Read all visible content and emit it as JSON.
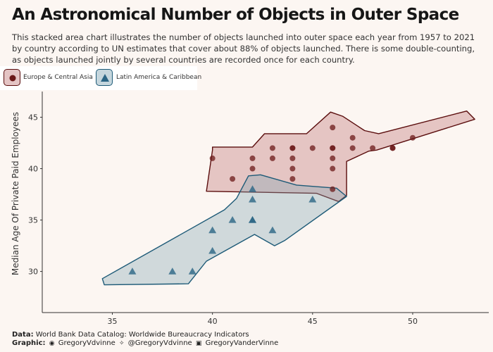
{
  "title": "An Astronomical Number of Objects in Outer Space",
  "subtitle": "This stacked area chart illustrates the number of objects launched into outer space each year from 1957 to 2021 by country according to UN estimates that cover about 88% of objects launched. There is some double-counting, as objects launched jointly by several countries are recorded once for each country.",
  "footer": {
    "data_label": "Data:",
    "data_text": "World Bank Data Catalog: Worldwide Bureaucracy Indicators",
    "graphic_label": "Graphic:",
    "github_handle": "GregoryVdvinne",
    "twitter_handle": "@GregoryVdvinne",
    "linkedin_handle": "GregoryVanderVinne"
  },
  "colors": {
    "europe_fill": "#c98a8a",
    "europe_stroke": "#5a0d0d",
    "europe_point": "#6b1818",
    "latam_fill": "#7fa3b3",
    "latam_stroke": "#1d5a77",
    "latam_point": "#2b6585",
    "background": "#fcf6f2"
  },
  "chart_data": {
    "type": "scatter",
    "ylabel": "Median Age Of Private Paid Employees",
    "xlabel": "",
    "xlim": [
      31.5,
      53.8
    ],
    "ylim": [
      26,
      47.5
    ],
    "xticks": [
      35,
      40,
      45,
      50
    ],
    "yticks": [
      30,
      35,
      40,
      45
    ],
    "grid": false,
    "legend_position": "top-left",
    "series": [
      {
        "name": "Europe & Central Asia",
        "marker": "circle",
        "points": [
          [
            40,
            41
          ],
          [
            41,
            39
          ],
          [
            42,
            40
          ],
          [
            42,
            41
          ],
          [
            43,
            42
          ],
          [
            43,
            41
          ],
          [
            44,
            42
          ],
          [
            44,
            42
          ],
          [
            44,
            41
          ],
          [
            44,
            40
          ],
          [
            44,
            39
          ],
          [
            45,
            42
          ],
          [
            46,
            44
          ],
          [
            46,
            42
          ],
          [
            46,
            42
          ],
          [
            46,
            41
          ],
          [
            46,
            40
          ],
          [
            46,
            38
          ],
          [
            47,
            43
          ],
          [
            47,
            42
          ],
          [
            48,
            42
          ],
          [
            49,
            42
          ],
          [
            49,
            42
          ],
          [
            50,
            43
          ]
        ],
        "hull": [
          [
            40,
            42.1
          ],
          [
            42,
            42.1
          ],
          [
            42.6,
            43.4
          ],
          [
            44.7,
            43.4
          ],
          [
            45.9,
            45.5
          ],
          [
            46.5,
            45.1
          ],
          [
            47.6,
            43.7
          ],
          [
            48.3,
            43.4
          ],
          [
            52.7,
            45.6
          ],
          [
            53.1,
            44.8
          ],
          [
            48.2,
            41.8
          ],
          [
            47.8,
            41.7
          ],
          [
            46.7,
            40.7
          ],
          [
            46.7,
            37.4
          ],
          [
            46.3,
            36.8
          ],
          [
            45.2,
            37.6
          ],
          [
            39.7,
            37.8
          ],
          [
            40,
            41.8
          ],
          [
            40,
            42.1
          ]
        ]
      },
      {
        "name": "Latin America & Caribbean",
        "marker": "triangle",
        "points": [
          [
            36,
            30
          ],
          [
            38,
            30
          ],
          [
            39,
            30
          ],
          [
            40,
            32
          ],
          [
            40,
            34
          ],
          [
            41,
            35
          ],
          [
            42,
            38
          ],
          [
            42,
            37
          ],
          [
            42,
            35
          ],
          [
            42,
            35
          ],
          [
            43,
            34
          ],
          [
            45,
            37
          ]
        ],
        "hull": [
          [
            34.5,
            29.3
          ],
          [
            40.6,
            36
          ],
          [
            41.2,
            37.1
          ],
          [
            41.8,
            39.3
          ],
          [
            42.4,
            39.4
          ],
          [
            44.2,
            38.4
          ],
          [
            46.2,
            38.1
          ],
          [
            46.7,
            37.3
          ],
          [
            43.6,
            33
          ],
          [
            43.1,
            32.5
          ],
          [
            42.1,
            33.6
          ],
          [
            39.7,
            31
          ],
          [
            38.8,
            28.8
          ],
          [
            34.6,
            28.7
          ],
          [
            34.5,
            29.3
          ]
        ]
      }
    ]
  }
}
